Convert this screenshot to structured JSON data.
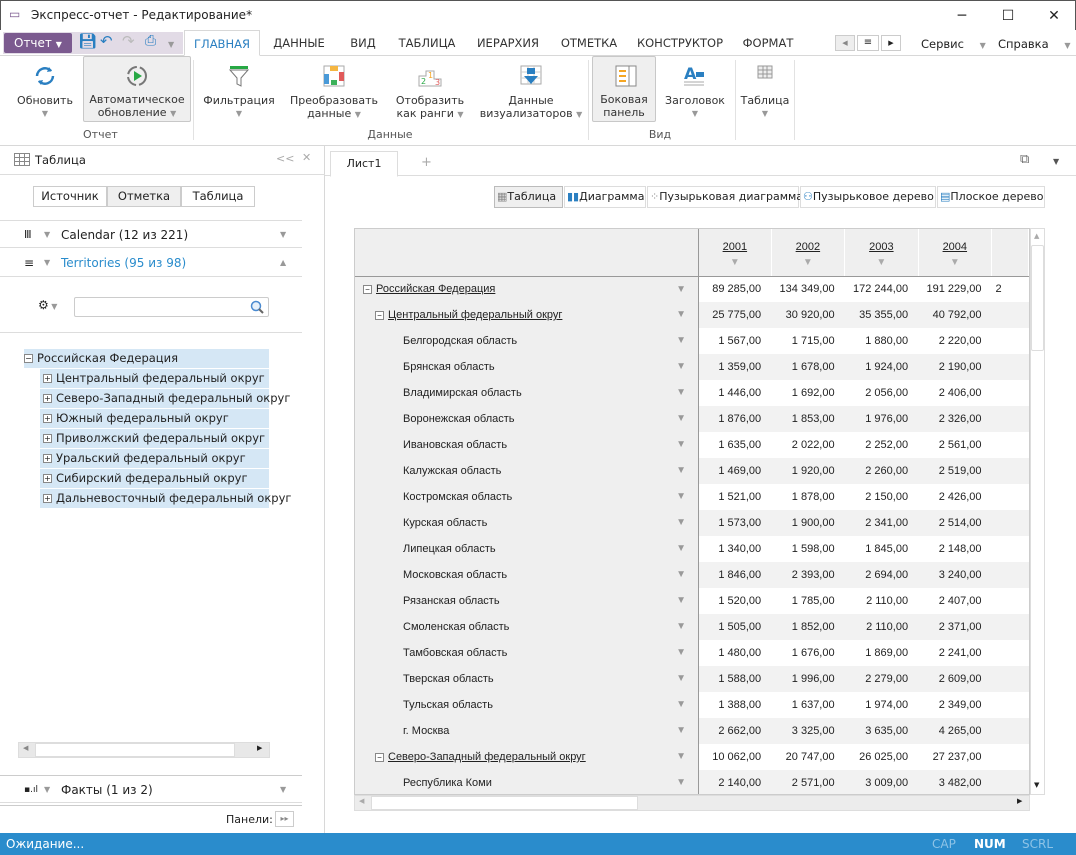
{
  "window": {
    "title": "Экспресс-отчет - Редактирование*",
    "minimize": "─",
    "maximize": "☐",
    "close": "✕"
  },
  "menu": {
    "report_button": "Отчет",
    "tabs": [
      "ГЛАВНАЯ",
      "ДАННЫЕ",
      "ВИД",
      "ТАБЛИЦА",
      "ИЕРАРХИЯ",
      "ОТМЕТКА",
      "КОНСТРУКТОР",
      "ФОРМАТ"
    ],
    "active_tab": "ГЛАВНАЯ",
    "service": "Сервис",
    "help": "Справка"
  },
  "ribbon": {
    "refresh": "Обновить",
    "auto_refresh_1": "Автоматическое",
    "auto_refresh_2": "обновление",
    "group_report": "Отчет",
    "filter": "Фильтрация",
    "transform_1": "Преобразовать",
    "transform_2": "данные",
    "ranks_1": "Отобразить",
    "ranks_2": "как ранги",
    "visualizers_1": "Данные",
    "visualizers_2": "визуализаторов",
    "group_data": "Данные",
    "side_panel_1": "Боковая",
    "side_panel_2": "панель",
    "header": "Заголовок",
    "group_view": "Вид",
    "table": "Таблица"
  },
  "left_panel": {
    "title": "Таблица",
    "collapse": "<<",
    "close": "✕",
    "segments": [
      "Источник",
      "Отметка",
      "Таблица"
    ],
    "active_segment": "Отметка",
    "dim_calendar": "Calendar (12 из 221)",
    "dim_territories": "Territories (95 из 98)",
    "search_placeholder": "",
    "tree_root": "Российская Федерация",
    "tree_children": [
      "Центральный федеральный округ",
      "Северо-Западный федеральный округ",
      "Южный федеральный округ",
      "Приволжский федеральный округ",
      "Уральский федеральный округ",
      "Сибирский федеральный округ",
      "Дальневосточный федеральный округ"
    ],
    "facts": "Факты (1 из 2)",
    "panels_label": "Панели:"
  },
  "sheet": {
    "tab": "Лист1",
    "add": "+"
  },
  "view_toolbar": [
    "Таблица",
    "Диаграмма",
    "Пузырьковая диаграмма",
    "Пузырьковое дерево",
    "Плоское дерево"
  ],
  "active_view": "Таблица",
  "table": {
    "columns": [
      "2001",
      "2002",
      "2003",
      "2004"
    ],
    "rows": [
      {
        "label": "Российская Федерация",
        "level": 0,
        "expandable": true,
        "values": [
          "89 285,00",
          "134 349,00",
          "172 244,00",
          "191 229,00"
        ],
        "next": "2"
      },
      {
        "label": "Центральный федеральный округ",
        "level": 1,
        "expandable": true,
        "values": [
          "25 775,00",
          "30 920,00",
          "35 355,00",
          "40 792,00"
        ]
      },
      {
        "label": "Белгородская область",
        "level": 2,
        "values": [
          "1 567,00",
          "1 715,00",
          "1 880,00",
          "2 220,00"
        ]
      },
      {
        "label": "Брянская область",
        "level": 2,
        "values": [
          "1 359,00",
          "1 678,00",
          "1 924,00",
          "2 190,00"
        ]
      },
      {
        "label": "Владимирская область",
        "level": 2,
        "values": [
          "1 446,00",
          "1 692,00",
          "2 056,00",
          "2 406,00"
        ]
      },
      {
        "label": "Воронежская область",
        "level": 2,
        "values": [
          "1 876,00",
          "1 853,00",
          "1 976,00",
          "2 326,00"
        ]
      },
      {
        "label": "Ивановская область",
        "level": 2,
        "values": [
          "1 635,00",
          "2 022,00",
          "2 252,00",
          "2 561,00"
        ]
      },
      {
        "label": "Калужская область",
        "level": 2,
        "values": [
          "1 469,00",
          "1 920,00",
          "2 260,00",
          "2 519,00"
        ]
      },
      {
        "label": "Костромская область",
        "level": 2,
        "values": [
          "1 521,00",
          "1 878,00",
          "2 150,00",
          "2 426,00"
        ]
      },
      {
        "label": "Курская область",
        "level": 2,
        "values": [
          "1 573,00",
          "1 900,00",
          "2 341,00",
          "2 514,00"
        ]
      },
      {
        "label": "Липецкая область",
        "level": 2,
        "values": [
          "1 340,00",
          "1 598,00",
          "1 845,00",
          "2 148,00"
        ]
      },
      {
        "label": "Московская область",
        "level": 2,
        "values": [
          "1 846,00",
          "2 393,00",
          "2 694,00",
          "3 240,00"
        ]
      },
      {
        "label": "Рязанская область",
        "level": 2,
        "values": [
          "1 520,00",
          "1 785,00",
          "2 110,00",
          "2 407,00"
        ]
      },
      {
        "label": "Смоленская область",
        "level": 2,
        "values": [
          "1 505,00",
          "1 852,00",
          "2 110,00",
          "2 371,00"
        ]
      },
      {
        "label": "Тамбовская область",
        "level": 2,
        "values": [
          "1 480,00",
          "1 676,00",
          "1 869,00",
          "2 241,00"
        ]
      },
      {
        "label": "Тверская область",
        "level": 2,
        "values": [
          "1 588,00",
          "1 996,00",
          "2 279,00",
          "2 609,00"
        ]
      },
      {
        "label": "Тульская область",
        "level": 2,
        "values": [
          "1 388,00",
          "1 637,00",
          "1 974,00",
          "2 349,00"
        ]
      },
      {
        "label": "г. Москва",
        "level": 2,
        "values": [
          "2 662,00",
          "3 325,00",
          "3 635,00",
          "4 265,00"
        ]
      },
      {
        "label": "Северо-Западный федеральный округ",
        "level": 1,
        "expandable": true,
        "values": [
          "10 062,00",
          "20 747,00",
          "26 025,00",
          "27 237,00"
        ]
      },
      {
        "label": "Республика Коми",
        "level": 2,
        "values": [
          "2 140,00",
          "2 571,00",
          "3 009,00",
          "3 482,00"
        ]
      }
    ]
  },
  "status": {
    "text": "Ожидание...",
    "cap": "CAP",
    "num": "NUM",
    "scrl": "SCRL"
  },
  "colors": {
    "accent": "#2a7fc1",
    "status_bar": "#2a8ccc",
    "report_button": "#7b5a8f",
    "tree_highlight": "#d5e7f5"
  }
}
